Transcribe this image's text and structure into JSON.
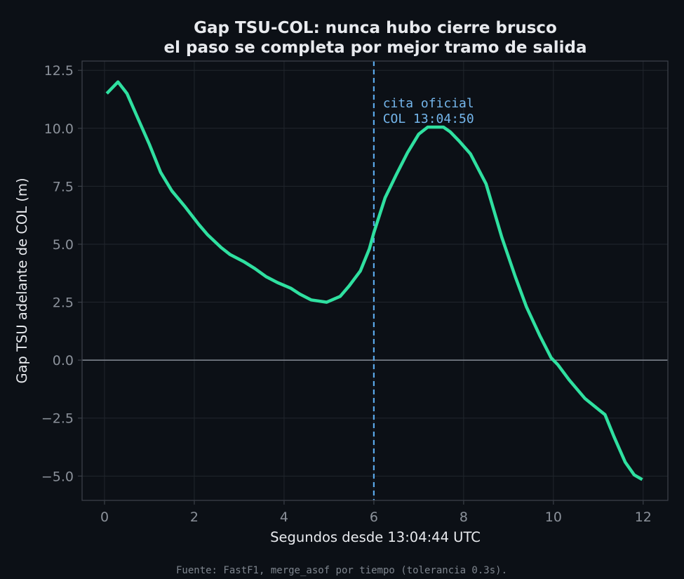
{
  "chart_data": {
    "type": "line",
    "title": [
      "Gap TSU-COL: nunca hubo cierre brusco",
      "el paso se completa por mejor tramo de salida"
    ],
    "xlabel": "Segundos desde 13:04:44 UTC",
    "ylabel": "Gap TSU adelante de COL (m)",
    "xlim": [
      -0.5,
      12.55
    ],
    "ylim": [
      -6.05,
      12.9
    ],
    "xticks": [
      0,
      2,
      4,
      6,
      8,
      10,
      12
    ],
    "yticks": [
      -5.0,
      -2.5,
      0.0,
      2.5,
      5.0,
      7.5,
      10.0,
      12.5
    ],
    "grid": true,
    "series": [
      {
        "color": "#2fe0a0",
        "x": [
          0.05,
          0.3,
          0.5,
          0.75,
          1.0,
          1.25,
          1.5,
          1.8,
          2.1,
          2.3,
          2.6,
          2.8,
          3.1,
          3.35,
          3.6,
          3.85,
          4.15,
          4.35,
          4.6,
          4.95,
          5.25,
          5.45,
          5.7,
          5.9,
          6.0,
          6.25,
          6.5,
          6.75,
          7.0,
          7.2,
          7.4,
          7.55,
          7.7,
          7.9,
          8.15,
          8.5,
          8.85,
          9.15,
          9.4,
          9.7,
          9.95,
          10.1,
          10.35,
          10.7,
          11.05,
          11.15,
          11.35,
          11.6,
          11.8,
          11.98
        ],
        "y": [
          11.5,
          12.0,
          11.5,
          10.4,
          9.3,
          8.1,
          7.3,
          6.6,
          5.85,
          5.4,
          4.85,
          4.55,
          4.25,
          3.95,
          3.6,
          3.35,
          3.1,
          2.85,
          2.6,
          2.5,
          2.75,
          3.2,
          3.85,
          4.8,
          5.5,
          7.0,
          8.0,
          8.95,
          9.75,
          10.05,
          10.05,
          10.05,
          9.85,
          9.45,
          8.9,
          7.6,
          5.3,
          3.6,
          2.3,
          1.05,
          0.1,
          -0.2,
          -0.85,
          -1.65,
          -2.2,
          -2.35,
          -3.3,
          -4.4,
          -4.95,
          -5.15
        ]
      }
    ],
    "reference_lines": [
      {
        "axis": "y",
        "value": 0.0,
        "color": "#7d838c",
        "style": "solid"
      },
      {
        "axis": "x",
        "value": 6.0,
        "color": "#5aa9ea",
        "style": "dashed"
      }
    ],
    "annotations": [
      {
        "text": [
          "cita oficial",
          "COL 13:04:50"
        ],
        "x": 6.2,
        "y": 10.9,
        "color": "#74b6ec"
      }
    ],
    "footer": "Fuente: FastF1, merge_asof por tiempo (tolerancia 0.3s)."
  },
  "colors": {
    "background": "#0c1016",
    "frame": "#3a3f47",
    "grid": "#21262d",
    "text": "#e8eaee",
    "tick": "#8b919a"
  }
}
